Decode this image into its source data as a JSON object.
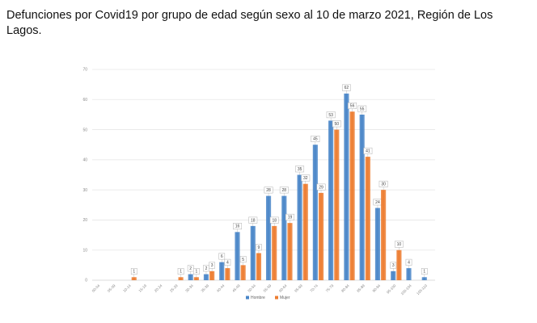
{
  "page": {
    "title": "Defunciones por Covid19 por grupo de edad según sexo al 10 de marzo 2021, Región de Los Lagos."
  },
  "chart_data": {
    "type": "bar",
    "title": "",
    "xlabel": "",
    "ylabel": "",
    "ylim": [
      0,
      70
    ],
    "yticks": [
      0,
      10,
      20,
      30,
      40,
      50,
      60,
      70
    ],
    "grid": true,
    "legend_position": "bottom",
    "categories": [
      "00-04",
      "05-09",
      "10-14",
      "15-19",
      "20-24",
      "25-29",
      "30-34",
      "35-39",
      "40-44",
      "45-49",
      "50-54",
      "55-59",
      "60-64",
      "65-69",
      "70-74",
      "75-79",
      "80-84",
      "85-89",
      "90-94",
      "95-100",
      "100-104",
      "105-110"
    ],
    "series": [
      {
        "name": "Hombre",
        "color": "#4a86c8",
        "values": [
          0,
          0,
          0,
          0,
          0,
          0,
          2,
          2,
          6,
          16,
          18,
          28,
          28,
          35,
          45,
          53,
          62,
          55,
          24,
          3,
          4,
          1
        ]
      },
      {
        "name": "Mujer",
        "color": "#ed7d31",
        "values": [
          0,
          0,
          1,
          0,
          0,
          1,
          1,
          3,
          4,
          5,
          9,
          18,
          19,
          32,
          29,
          50,
          56,
          41,
          30,
          10,
          0,
          0
        ]
      }
    ]
  }
}
